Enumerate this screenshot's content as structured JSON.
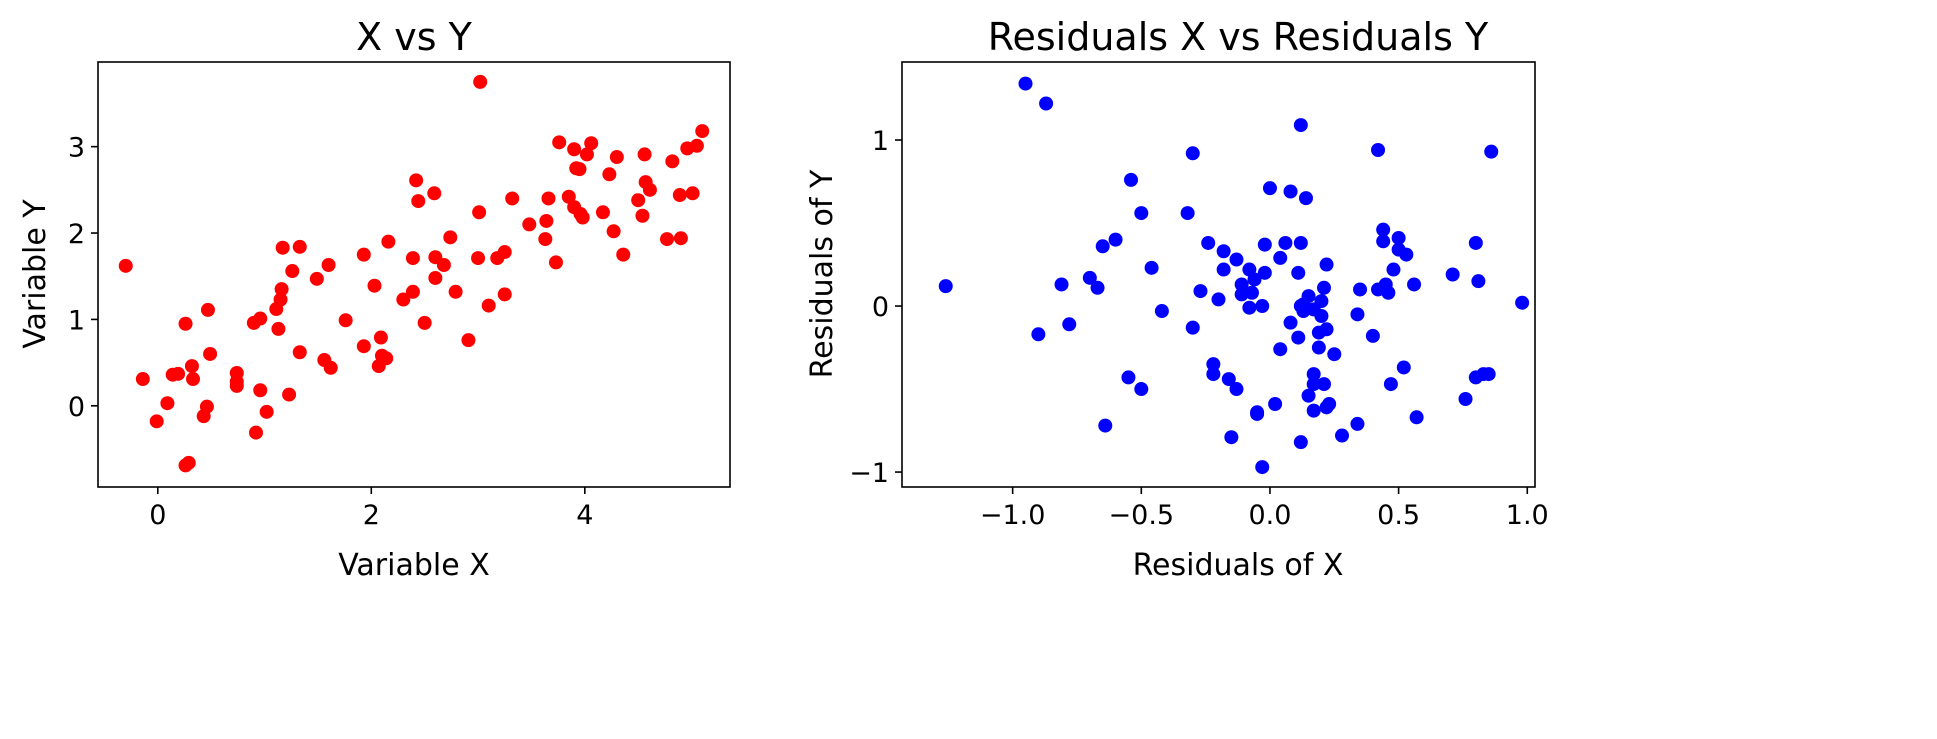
{
  "chart_data": [
    {
      "type": "scatter",
      "title": "X vs Y",
      "xlabel": "Variable X",
      "ylabel": "Variable Y",
      "xlim": [
        -0.56,
        5.36
      ],
      "ylim": [
        -0.94,
        3.98
      ],
      "xticks": [
        0,
        2,
        4
      ],
      "xtick_labels": [
        "0",
        "2",
        "4"
      ],
      "yticks": [
        0,
        1,
        2,
        3
      ],
      "ytick_labels": [
        "0",
        "1",
        "2",
        "3"
      ],
      "grid": false,
      "color": "#ff0000",
      "x": [
        -0.3,
        -0.14,
        0.14,
        0.19,
        -0.01,
        0.09,
        0.26,
        0.32,
        0.33,
        0.47,
        0.49,
        0.46,
        0.43,
        0.26,
        0.29,
        0.74,
        0.74,
        0.74,
        0.9,
        0.96,
        0.96,
        0.92,
        1.02,
        1.11,
        1.13,
        1.15,
        1.16,
        1.17,
        1.23,
        1.26,
        1.33,
        1.33,
        1.49,
        1.56,
        1.6,
        1.62,
        1.76,
        1.93,
        1.93,
        2.03,
        2.09,
        2.07,
        2.1,
        2.14,
        2.16,
        2.3,
        2.39,
        2.39,
        2.42,
        2.44,
        2.5,
        2.59,
        2.6,
        2.6,
        2.68,
        2.74,
        2.79,
        2.91,
        3.0,
        3.01,
        3.02,
        3.1,
        3.18,
        3.25,
        3.25,
        3.32,
        3.48,
        3.63,
        3.64,
        3.66,
        3.73,
        3.76,
        3.85,
        3.9,
        3.9,
        3.92,
        3.95,
        3.96,
        3.98,
        4.02,
        4.06,
        4.17,
        4.23,
        4.27,
        4.3,
        4.36,
        4.5,
        4.54,
        4.56,
        4.57,
        4.61,
        4.77,
        4.82,
        4.89,
        4.9,
        4.96,
        5.01,
        5.05,
        5.1
      ],
      "y": [
        1.62,
        0.31,
        0.36,
        0.37,
        -0.18,
        0.03,
        0.95,
        0.46,
        0.31,
        1.11,
        0.6,
        -0.01,
        -0.12,
        -0.69,
        -0.66,
        0.38,
        0.28,
        0.23,
        0.96,
        1.01,
        0.18,
        -0.31,
        -0.07,
        1.12,
        0.89,
        1.23,
        1.35,
        1.83,
        0.13,
        1.56,
        1.84,
        0.62,
        1.47,
        0.53,
        1.63,
        0.44,
        0.99,
        1.75,
        0.69,
        1.39,
        0.79,
        0.46,
        0.58,
        0.55,
        1.9,
        1.23,
        1.71,
        1.32,
        2.61,
        2.37,
        0.96,
        2.46,
        1.72,
        1.48,
        1.63,
        1.95,
        1.32,
        0.76,
        1.71,
        2.24,
        3.75,
        1.16,
        1.71,
        1.78,
        1.29,
        2.4,
        2.1,
        1.93,
        2.14,
        2.4,
        1.66,
        3.05,
        2.42,
        2.97,
        2.3,
        2.75,
        2.74,
        2.22,
        2.18,
        2.91,
        3.04,
        2.24,
        2.68,
        2.02,
        2.88,
        1.75,
        2.38,
        2.2,
        2.91,
        2.59,
        2.5,
        1.93,
        2.83,
        2.44,
        1.94,
        2.98,
        2.46,
        3.01,
        3.18
      ]
    },
    {
      "type": "scatter",
      "title": "Residuals X vs Residuals Y",
      "xlabel": "Residuals of X",
      "ylabel": "Residuals of Y",
      "xlim": [
        -1.43,
        1.03
      ],
      "ylim": [
        -1.09,
        1.47
      ],
      "xticks": [
        -1.0,
        -0.5,
        0.0,
        0.5,
        1.0
      ],
      "xtick_labels": [
        "−1.0",
        "−0.5",
        "0.0",
        "0.5",
        "1.0"
      ],
      "yticks": [
        -1,
        0,
        1
      ],
      "ytick_labels": [
        "−1",
        "0",
        "1"
      ],
      "grid": false,
      "color": "#0000ff",
      "x": [
        -1.26,
        -0.95,
        -0.87,
        -0.9,
        -0.81,
        -0.78,
        -0.7,
        -0.67,
        -0.65,
        -0.6,
        -0.64,
        -0.54,
        -0.55,
        -0.5,
        -0.5,
        -0.46,
        -0.42,
        -0.32,
        -0.3,
        -0.3,
        -0.27,
        -0.24,
        -0.22,
        -0.22,
        -0.2,
        -0.18,
        -0.18,
        -0.16,
        -0.15,
        -0.13,
        -0.13,
        -0.11,
        -0.11,
        -0.08,
        -0.08,
        -0.06,
        -0.07,
        -0.05,
        -0.05,
        -0.03,
        -0.02,
        -0.03,
        -0.02,
        0.0,
        0.02,
        0.04,
        0.04,
        0.06,
        0.11,
        0.08,
        0.11,
        0.12,
        0.12,
        0.12,
        0.13,
        0.13,
        0.15,
        0.17,
        0.19,
        0.19,
        0.08,
        0.12,
        0.14,
        0.15,
        0.17,
        0.17,
        0.17,
        0.2,
        0.2,
        0.21,
        0.21,
        0.22,
        0.22,
        0.22,
        0.23,
        0.25,
        0.28,
        0.34,
        0.34,
        0.35,
        0.4,
        0.42,
        0.44,
        0.44,
        0.46,
        0.47,
        0.48,
        0.5,
        0.5,
        0.52,
        0.53,
        0.42,
        0.45,
        0.56,
        0.57,
        0.71,
        0.76,
        0.8,
        0.8,
        0.81,
        0.83,
        0.85,
        0.86,
        0.98
      ],
      "y": [
        0.12,
        1.34,
        1.22,
        -0.17,
        0.13,
        -0.11,
        0.17,
        0.11,
        0.36,
        0.4,
        -0.72,
        0.76,
        -0.43,
        0.56,
        -0.5,
        0.23,
        -0.03,
        0.56,
        0.92,
        -0.13,
        0.09,
        0.38,
        -0.35,
        -0.41,
        0.04,
        0.33,
        0.22,
        -0.44,
        -0.79,
        0.28,
        -0.5,
        0.13,
        0.07,
        -0.01,
        0.22,
        0.16,
        0.08,
        -0.64,
        -0.65,
        -0.97,
        0.2,
        0.0,
        0.37,
        0.71,
        -0.59,
        0.29,
        -0.26,
        0.38,
        0.2,
        -0.1,
        -0.19,
        0.38,
        -0.82,
        0.0,
        -0.03,
        0.01,
        -0.54,
        -0.02,
        -0.25,
        -0.16,
        0.69,
        1.09,
        0.65,
        0.06,
        -0.41,
        -0.47,
        -0.63,
        0.03,
        -0.06,
        0.11,
        -0.47,
        -0.61,
        0.25,
        -0.14,
        -0.59,
        -0.29,
        -0.78,
        -0.71,
        -0.05,
        0.1,
        -0.18,
        0.1,
        0.39,
        0.46,
        0.08,
        -0.47,
        0.22,
        0.41,
        0.34,
        -0.37,
        0.31,
        0.94,
        0.13,
        0.13,
        -0.67,
        0.19,
        -0.56,
        0.38,
        -0.43,
        0.15,
        -0.41,
        -0.41,
        0.93,
        0.02
      ]
    }
  ]
}
